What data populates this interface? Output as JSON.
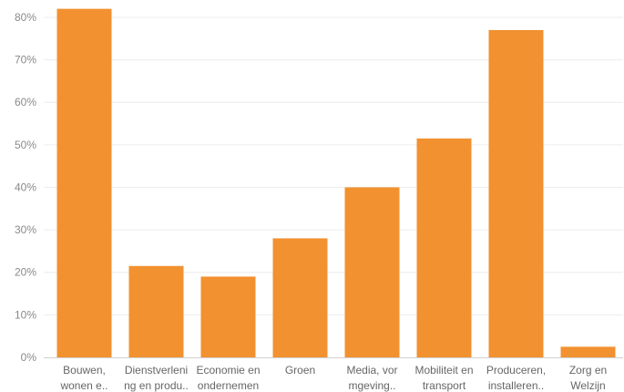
{
  "chart_data": {
    "type": "bar",
    "title": "",
    "xlabel": "",
    "ylabel": "",
    "ylim": [
      0,
      83
    ],
    "yticks": [
      "0%",
      "10%",
      "20%",
      "30%",
      "40%",
      "50%",
      "60%",
      "70%",
      "80%"
    ],
    "ytick_values": [
      0,
      10,
      20,
      30,
      40,
      50,
      60,
      70,
      80
    ],
    "grid": true,
    "categories": [
      [
        "Bouwen,",
        "wonen e.."
      ],
      [
        "Dienstverleni",
        "ng en produ.."
      ],
      [
        "Economie en",
        "ondernemen"
      ],
      [
        "Groen"
      ],
      [
        "Media, vor",
        "mgeving.."
      ],
      [
        "Mobiliteit en",
        "transport"
      ],
      [
        "Produceren,",
        "installeren.."
      ],
      [
        "Zorg en",
        "Welzijn"
      ]
    ],
    "values": [
      82,
      21.5,
      19,
      28,
      40,
      51.5,
      77,
      2.5
    ],
    "bar_color": "#f29130"
  }
}
